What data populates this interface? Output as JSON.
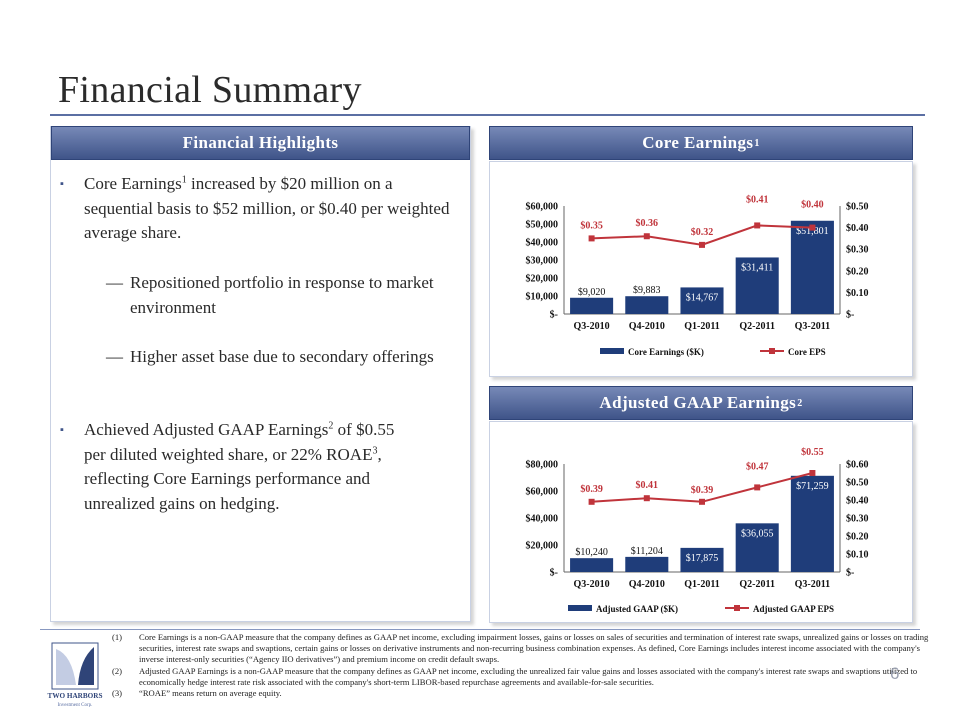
{
  "title": "Financial Summary",
  "left_panel": {
    "header": "Financial Highlights",
    "bullet1": {
      "t1": "Core Earnings",
      "s1": "1",
      "t2": " increased by $20 million on a sequential basis to $52 million, or $0.40 per weighted average share."
    },
    "sub1": "Repositioned portfolio in response to market environment",
    "sub2": "Higher asset base due to secondary offerings",
    "bullet2": {
      "t1": "Achieved Adjusted GAAP Earnings",
      "s1": "2",
      "t2": " of $0.55 per diluted weighted share, or 22% ROAE",
      "s2": "3",
      "t3": ", reflecting Core Earnings performance and unrealized gains on hedging."
    },
    "bullet_glyph": "▪",
    "dash_glyph": "—"
  },
  "core_panel": {
    "header": "Core Earnings",
    "sup": "1"
  },
  "adj_panel": {
    "header": "Adjusted GAAP Earnings",
    "sup": "2"
  },
  "chart_data": [
    {
      "type": "bar",
      "categories": [
        "Q3-2010",
        "Q4-2010",
        "Q1-2011",
        "Q2-2011",
        "Q3-2011"
      ],
      "series": [
        {
          "name": "Core Earnings ($K)",
          "type": "bar",
          "values": [
            9020,
            9883,
            14767,
            31411,
            51801
          ],
          "labels": [
            "$9,020",
            "$9,883",
            "$14,767",
            "$31,411",
            "$51,801"
          ],
          "color": "#1f3d7a"
        },
        {
          "name": "Core EPS",
          "type": "line",
          "values": [
            0.35,
            0.36,
            0.32,
            0.41,
            0.4
          ],
          "labels": [
            "$0.35",
            "$0.36",
            "$0.32",
            "$0.41",
            "$0.40"
          ],
          "color": "#c0343b"
        }
      ],
      "y_left": {
        "min": 0,
        "max": 60000,
        "ticks": [
          "$-",
          "$10,000",
          "$20,000",
          "$30,000",
          "$40,000",
          "$50,000",
          "$60,000"
        ]
      },
      "y_right": {
        "min": 0,
        "max": 0.5,
        "ticks": [
          "$-",
          "$0.10",
          "$0.20",
          "$0.30",
          "$0.40",
          "$0.50"
        ]
      },
      "legend": "bottom"
    },
    {
      "type": "bar",
      "categories": [
        "Q3-2010",
        "Q4-2010",
        "Q1-2011",
        "Q2-2011",
        "Q3-2011"
      ],
      "series": [
        {
          "name": "Adjusted GAAP ($K)",
          "type": "bar",
          "values": [
            10240,
            11204,
            17875,
            36055,
            71259
          ],
          "labels": [
            "$10,240",
            "$11,204",
            "$17,875",
            "$36,055",
            "$71,259"
          ],
          "color": "#1f3d7a"
        },
        {
          "name": "Adjusted GAAP EPS",
          "type": "line",
          "values": [
            0.39,
            0.41,
            0.39,
            0.47,
            0.55
          ],
          "labels": [
            "$0.39",
            "$0.41",
            "$0.39",
            "$0.47",
            "$0.55"
          ],
          "color": "#c0343b"
        }
      ],
      "y_left": {
        "min": 0,
        "max": 80000,
        "ticks": [
          "$-",
          "$20,000",
          "$40,000",
          "$60,000",
          "$80,000"
        ]
      },
      "y_right": {
        "min": 0,
        "max": 0.6,
        "ticks": [
          "$-",
          "$0.10",
          "$0.20",
          "$0.30",
          "$0.40",
          "$0.50",
          "$0.60"
        ]
      },
      "legend": "bottom"
    }
  ],
  "footnotes": [
    {
      "num": "(1)",
      "text": "Core Earnings is a non-GAAP measure that the company defines as GAAP net income, excluding impairment losses, gains or losses on sales of securities and termination of interest rate swaps, unrealized gains or losses on trading securities, interest rate swaps and swaptions, certain gains or losses on derivative instruments and non-recurring business combination expenses. As defined, Core Earnings includes interest income associated with the company's inverse interest-only securities (“Agency IIO derivatives”) and premium income on credit default swaps."
    },
    {
      "num": "(2)",
      "text": "Adjusted GAAP Earnings is a non-GAAP measure that the company defines as GAAP net income, excluding the unrealized fair value gains and losses associated with the company's interest rate swaps and swaptions utilized to economically hedge interest rate risk associated with the company's short-term LIBOR-based repurchase agreements and available-for-sale securities."
    },
    {
      "num": "(3)",
      "text": "“ROAE” means return on average equity."
    }
  ],
  "logo": {
    "line1": "TWO HARBORS",
    "line2": "Investment Corp."
  },
  "page_number": "6"
}
